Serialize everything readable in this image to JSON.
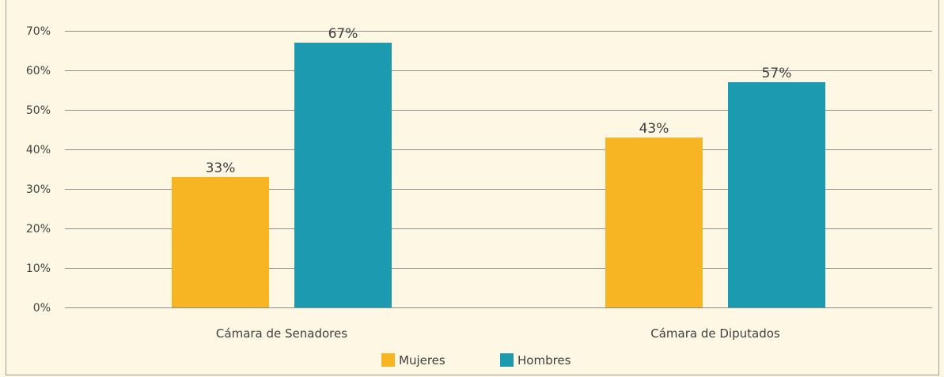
{
  "chart_data": {
    "type": "bar",
    "categories": [
      "Cámara de Senadores",
      "Cámara de Diputados"
    ],
    "series": [
      {
        "name": "Mujeres",
        "values": [
          33,
          43
        ],
        "labels": [
          "33%",
          "43%"
        ],
        "color": "#f7b524"
      },
      {
        "name": "Hombres",
        "values": [
          67,
          57
        ],
        "labels": [
          "67%",
          "57%"
        ],
        "color": "#1c9aaf"
      }
    ],
    "yticks": [
      "0%",
      "10%",
      "20%",
      "30%",
      "40%",
      "50%",
      "60%",
      "70%"
    ],
    "ylim": [
      0,
      70
    ],
    "grid": true,
    "legend_position": "bottom",
    "title": "",
    "xlabel": "",
    "ylabel": ""
  }
}
